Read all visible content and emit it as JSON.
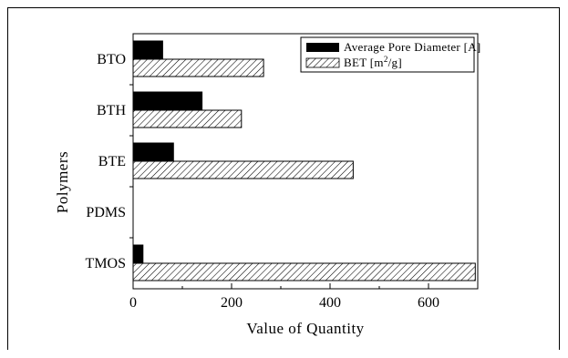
{
  "chart_data": {
    "type": "bar",
    "orientation": "horizontal",
    "categories": [
      "TMOS",
      "PDMS",
      "BTE",
      "BTH",
      "BTO"
    ],
    "series": [
      {
        "name": "Average Pore Diameter [A]",
        "values": [
          20,
          0,
          82,
          140,
          60
        ],
        "fill": "solid",
        "color": "#000000"
      },
      {
        "name": "BET [m²/g]",
        "values": [
          695,
          0,
          447,
          220,
          265
        ],
        "fill": "hatch",
        "color": "#000000"
      }
    ],
    "xlabel": "Value of Quantity",
    "ylabel": "Polymers",
    "xlim": [
      0,
      700
    ],
    "x_ticks": [
      0,
      200,
      400,
      600
    ],
    "grid": false,
    "legend_position": "top-right"
  },
  "legend": {
    "series1_label": "Average Pore Diameter [A]",
    "series2_prefix": "BET [m",
    "series2_sup": "2",
    "series2_suffix": "/g]"
  }
}
